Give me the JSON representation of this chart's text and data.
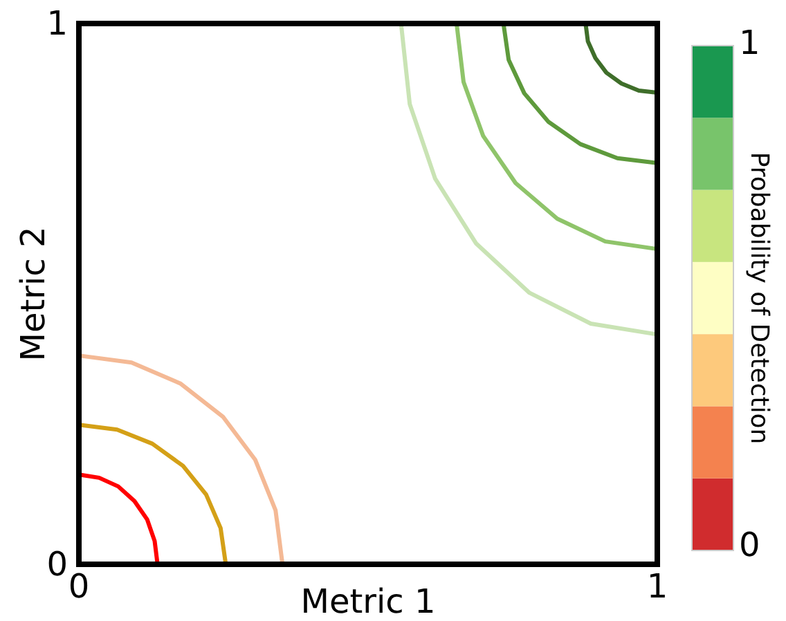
{
  "chart_data": {
    "type": "line",
    "xlabel": "Metric 1",
    "ylabel": "Metric 2",
    "clabel": "Probability of Detection",
    "xlim": [
      0,
      1
    ],
    "ylim": [
      0,
      1
    ],
    "xticks": [
      0,
      1
    ],
    "yticks": [
      0,
      1
    ],
    "clim": [
      0,
      1
    ],
    "cticks": [
      0,
      1
    ],
    "colors": [
      "#d02c2e",
      "#f4824f",
      "#fdc97c",
      "#fefec4",
      "#c8e57f",
      "#78c46b",
      "#1a9850"
    ],
    "series": [
      {
        "color": "#ff0000",
        "x": [
          0.136,
          0.131,
          0.118,
          0.096,
          0.068,
          0.035,
          0
        ],
        "values": [
          0,
          0.043,
          0.083,
          0.117,
          0.144,
          0.16,
          0.166
        ]
      },
      {
        "color": "#d4a017",
        "x": [
          0.254,
          0.245,
          0.22,
          0.18,
          0.127,
          0.066,
          0
        ],
        "values": [
          0,
          0.067,
          0.129,
          0.182,
          0.223,
          0.249,
          0.258
        ]
      },
      {
        "color": "#f4b995",
        "x": [
          0.352,
          0.34,
          0.305,
          0.249,
          0.176,
          0.091,
          0
        ],
        "values": [
          0,
          0.1,
          0.193,
          0.273,
          0.334,
          0.373,
          0.386
        ]
      },
      {
        "color": "#c9e3b4",
        "x": [
          0.557,
          0.572,
          0.616,
          0.687,
          0.779,
          0.885,
          1
        ],
        "values": [
          1,
          0.851,
          0.713,
          0.593,
          0.502,
          0.445,
          0.425
        ]
      },
      {
        "color": "#8fc46a",
        "x": [
          0.653,
          0.665,
          0.699,
          0.755,
          0.827,
          0.91,
          1
        ],
        "values": [
          1,
          0.892,
          0.792,
          0.705,
          0.639,
          0.597,
          0.583
        ]
      },
      {
        "color": "#5e9a3c",
        "x": [
          0.734,
          0.743,
          0.77,
          0.812,
          0.867,
          0.931,
          1
        ],
        "values": [
          1,
          0.933,
          0.871,
          0.818,
          0.777,
          0.751,
          0.742
        ]
      },
      {
        "color": "#3f6e2a",
        "x": [
          0.876,
          0.88,
          0.893,
          0.912,
          0.938,
          0.968,
          1
        ],
        "values": [
          1,
          0.967,
          0.936,
          0.909,
          0.889,
          0.876,
          0.872
        ]
      }
    ]
  }
}
